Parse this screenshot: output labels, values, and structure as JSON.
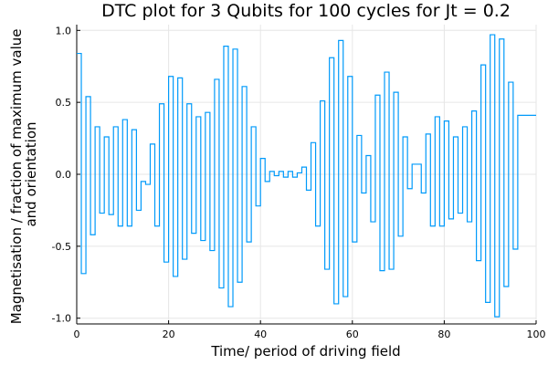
{
  "chart_data": {
    "type": "line",
    "style": "step",
    "title": "DTC plot for 3 Qubits for 100 cycles for Jt = 0.2",
    "xlabel": "Time/ period of driving field",
    "ylabel_lines": [
      "Magnetisation / fraction of maximum value",
      "and orientation"
    ],
    "xlim": [
      0,
      100
    ],
    "ylim": [
      -1.04,
      1.04
    ],
    "xticks": [
      0,
      20,
      40,
      60,
      80,
      100
    ],
    "xtick_labels": [
      "0",
      "20",
      "40",
      "60",
      "80",
      "100"
    ],
    "yticks": [
      -1.0,
      -0.5,
      0.0,
      0.5,
      1.0
    ],
    "ytick_labels": [
      "-1.0",
      "-0.5",
      "0.0",
      "0.5",
      "1.0"
    ],
    "grid": true,
    "legend": "none",
    "line_color": "#009AFA",
    "series": [
      {
        "x": [
          0,
          1,
          2,
          3,
          4,
          5,
          6,
          7,
          8,
          9,
          10,
          11,
          12,
          13,
          14,
          15,
          16,
          17,
          18,
          19,
          20,
          21,
          22,
          23,
          24,
          25,
          26,
          27,
          28,
          29,
          30,
          31,
          32,
          33,
          34,
          35,
          36,
          37,
          38,
          39,
          40,
          41,
          42,
          43,
          44,
          45,
          46,
          47,
          48,
          49,
          50,
          51,
          52,
          53,
          54,
          55,
          56,
          57,
          58,
          59,
          60,
          61,
          62,
          63,
          64,
          65,
          66,
          67,
          68,
          69,
          70,
          71,
          72,
          73,
          74,
          75,
          76,
          77,
          78,
          79,
          80,
          81,
          82,
          83,
          84,
          85,
          86,
          87,
          88,
          89,
          90,
          91,
          92,
          93,
          94,
          95,
          96,
          97,
          98,
          99,
          100
        ],
        "y": [
          0.84,
          -0.69,
          0.54,
          -0.42,
          0.33,
          -0.27,
          0.26,
          -0.28,
          0.33,
          -0.36,
          0.38,
          -0.36,
          0.31,
          -0.25,
          -0.05,
          -0.07,
          0.21,
          -0.36,
          0.49,
          -0.61,
          0.68,
          -0.71,
          0.67,
          -0.59,
          0.49,
          -0.41,
          0.4,
          -0.46,
          0.43,
          -0.53,
          0.66,
          -0.79,
          0.89,
          -0.92,
          0.87,
          -0.75,
          0.61,
          -0.47,
          0.33,
          -0.22,
          0.11,
          -0.05,
          0.02,
          -0.01,
          0.02,
          -0.02,
          0.02,
          -0.02,
          0.01,
          0.05,
          -0.11,
          0.22,
          -0.36,
          0.51,
          -0.66,
          0.81,
          -0.9,
          0.93,
          -0.85,
          0.68,
          -0.47,
          0.27,
          -0.13,
          0.13,
          -0.33,
          0.55,
          -0.67,
          0.71,
          -0.66,
          0.57,
          -0.43,
          0.26,
          -0.1,
          0.07,
          0.07,
          -0.13,
          0.28,
          -0.36,
          0.4,
          -0.36,
          0.37,
          -0.31,
          0.26,
          -0.27,
          0.33,
          -0.33,
          0.44,
          -0.6,
          0.76,
          -0.89,
          0.97,
          -0.99,
          0.94,
          -0.78,
          0.64,
          -0.52,
          0.41,
          0.41,
          0.41,
          0.41,
          0.41
        ]
      }
    ]
  }
}
